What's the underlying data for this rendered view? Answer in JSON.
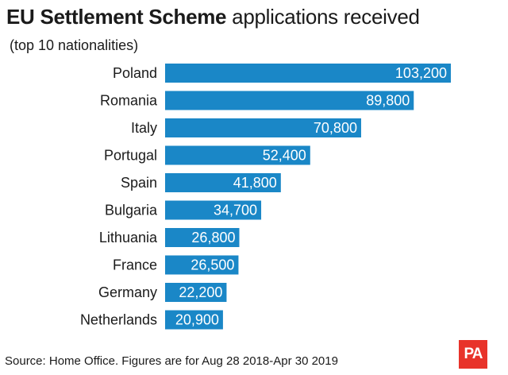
{
  "title": {
    "bold_part": "EU Settlement Scheme",
    "regular_part": "applications received"
  },
  "subtitle": "(top 10 nationalities)",
  "source": "Source: Home Office. Figures are for Aug 28 2018-Apr 30 2019",
  "logo": "PA",
  "colors": {
    "bar": "#1a87c7",
    "bar_label": "#ffffff",
    "category_label": "#1a1a1a",
    "logo_bg": "#e8332a"
  },
  "chart_data": {
    "type": "bar",
    "orientation": "horizontal",
    "categories": [
      "Poland",
      "Romania",
      "Italy",
      "Portugal",
      "Spain",
      "Bulgaria",
      "Lithuania",
      "France",
      "Germany",
      "Netherlands"
    ],
    "values": [
      103200,
      89800,
      70800,
      52400,
      41800,
      34700,
      26800,
      26500,
      22200,
      20900
    ],
    "value_labels": [
      "103,200",
      "89,800",
      "70,800",
      "52,400",
      "41,800",
      "34,700",
      "26,800",
      "26,500",
      "22,200",
      "20,900"
    ],
    "title": "EU Settlement Scheme applications received",
    "subtitle": "(top 10 nationalities)",
    "xlabel": "",
    "ylabel": "",
    "xlim": [
      0,
      103200
    ],
    "grid": false,
    "legend": "none"
  }
}
